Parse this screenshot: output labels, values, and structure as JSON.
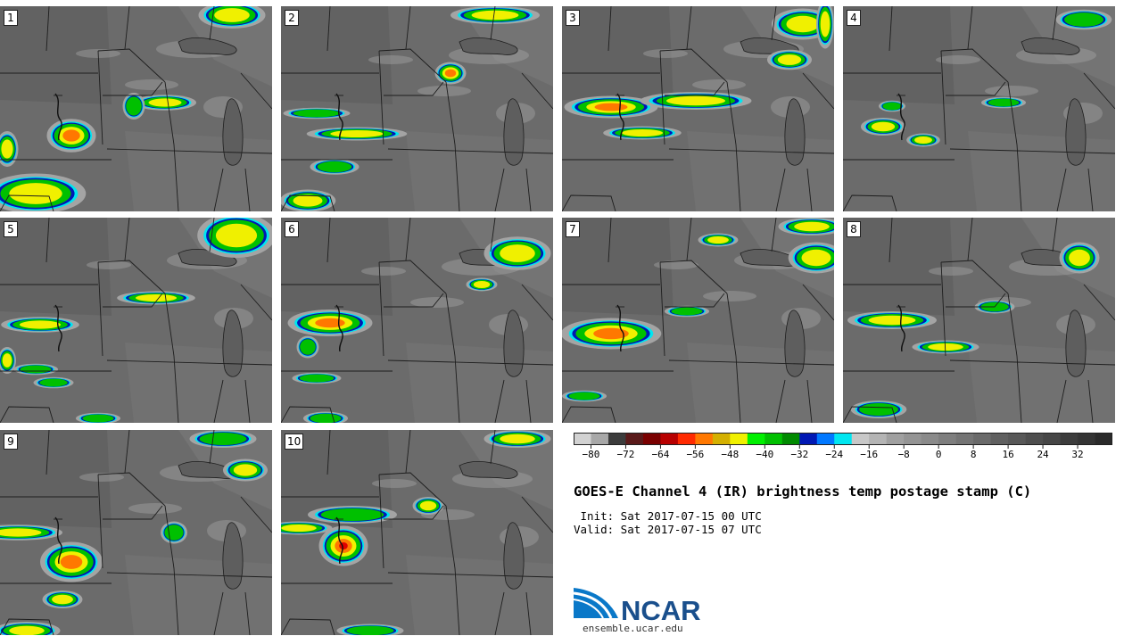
{
  "panels": [
    {
      "label": "1"
    },
    {
      "label": "2"
    },
    {
      "label": "3"
    },
    {
      "label": "4"
    },
    {
      "label": "5"
    },
    {
      "label": "6"
    },
    {
      "label": "7"
    },
    {
      "label": "8"
    },
    {
      "label": "9"
    },
    {
      "label": "10"
    }
  ],
  "colorbar": {
    "colors": [
      "#d2d2d2",
      "#a8a8a8",
      "#3c3c3c",
      "#5a1a1a",
      "#7a0000",
      "#b80000",
      "#ff2a00",
      "#ff7800",
      "#d4b000",
      "#f0f000",
      "#00f000",
      "#00c000",
      "#008a00",
      "#0018b4",
      "#0078ff",
      "#00e6f0",
      "#c8c8c8",
      "#b4b4b4",
      "#a0a0a0",
      "#949494",
      "#8a8a8a",
      "#7e7e7e",
      "#747474",
      "#6a6a6a",
      "#606060",
      "#585858",
      "#4e4e4e",
      "#464646",
      "#3c3c3c",
      "#343434",
      "#2a2a2a"
    ],
    "tick_labels": [
      "−80",
      "−72",
      "−64",
      "−56",
      "−48",
      "−40",
      "−32",
      "−24",
      "−16",
      "−8",
      "0",
      "8",
      "16",
      "24",
      "32"
    ],
    "units": "C"
  },
  "title": "GOES-E Channel 4 (IR) brightness temp postage stamp (C)",
  "init_line": " Init: Sat 2017-07-15 00 UTC",
  "valid_line": "Valid: Sat 2017-07-15 07 UTC",
  "logo_text": "NCAR",
  "url": "ensemble.ucar.edu",
  "colors": {
    "land": "#6b6b6b",
    "lake": "#5e5e5e",
    "border": "#1e1e1e",
    "cloud": "#a4a4a4"
  }
}
